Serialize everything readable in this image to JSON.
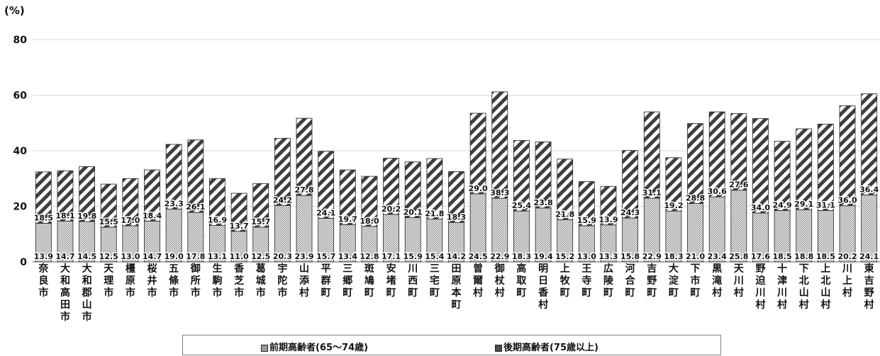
{
  "chart_data": {
    "type": "bar",
    "stacked": true,
    "unit_label": "(%)",
    "ylim": [
      0,
      80
    ],
    "yticks": [
      0,
      20,
      40,
      60,
      80
    ],
    "grid": true,
    "legend_position": "bottom",
    "categories": [
      "奈良市",
      "大和高田市",
      "大和郡山市",
      "天理市",
      "橿原市",
      "桜井市",
      "五條市",
      "御所市",
      "生駒市",
      "香芝市",
      "葛城市",
      "宇陀市",
      "山添村",
      "平群町",
      "三郷町",
      "斑鳩町",
      "安堵町",
      "川西町",
      "三宅町",
      "田原本町",
      "曽爾村",
      "御杖村",
      "高取町",
      "明日香村",
      "上牧町",
      "王寺町",
      "広陵町",
      "河合町",
      "吉野町",
      "大淀町",
      "下市町",
      "黒滝村",
      "天川村",
      "野迫川村",
      "十津川村",
      "下北山村",
      "上北山村",
      "川上村",
      "東吉野村"
    ],
    "series": [
      {
        "name": "前期高齢者(65～74歳)",
        "values": [
          13.9,
          14.7,
          14.5,
          12.5,
          13.0,
          14.7,
          19.0,
          17.8,
          13.1,
          11.0,
          12.5,
          20.3,
          23.9,
          15.7,
          13.4,
          12.8,
          17.1,
          15.9,
          15.4,
          14.2,
          24.5,
          22.9,
          18.3,
          19.4,
          15.2,
          13.0,
          13.3,
          15.8,
          22.9,
          18.3,
          21.0,
          23.4,
          25.8,
          17.6,
          18.5,
          18.8,
          18.5,
          20.2,
          24.1
        ]
      },
      {
        "name": "後期高齢者(75歳以上)",
        "values": [
          18.5,
          18.1,
          19.8,
          15.5,
          17.0,
          18.4,
          23.3,
          26.1,
          16.9,
          13.7,
          15.7,
          24.2,
          27.8,
          24.1,
          19.7,
          18.0,
          20.2,
          20.1,
          21.8,
          18.3,
          29.0,
          38.3,
          25.4,
          23.8,
          21.8,
          15.9,
          13.9,
          24.3,
          31.1,
          19.2,
          28.8,
          30.6,
          27.6,
          34.0,
          24.9,
          29.1,
          31.1,
          36.0,
          36.4
        ]
      }
    ]
  },
  "legend": {
    "early_label": "前期高齢者(65～74歳)",
    "late_label": "後期高齢者(75歳以上)"
  },
  "colors": {
    "early_fill": "#9a9a9a",
    "late_fill": "#4d4d4d",
    "grid": "#d9d9d9",
    "axis": "#595959"
  }
}
